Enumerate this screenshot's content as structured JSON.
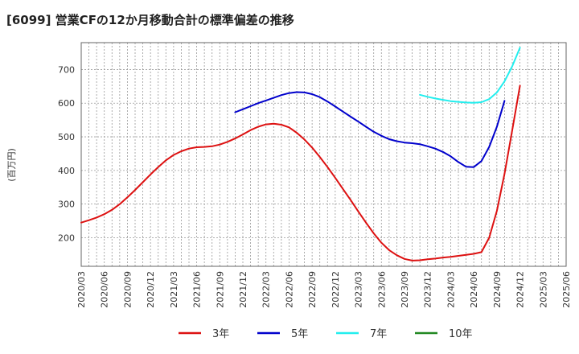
{
  "chart_data": {
    "type": "line",
    "title": "[6099]  営業CFの12か月移動合計の標準偏差の推移",
    "ylabel": "(百万円)",
    "xlabel": "",
    "ylim": [
      115,
      780
    ],
    "yticks": [
      200,
      300,
      400,
      500,
      600,
      700
    ],
    "grid": true,
    "legend_position": "bottom",
    "x_start": "2020-03",
    "x_end": "2025-06",
    "xtick_labels": [
      "2020/03",
      "2020/06",
      "2020/09",
      "2020/12",
      "2021/03",
      "2021/06",
      "2021/09",
      "2021/12",
      "2022/03",
      "2022/06",
      "2022/09",
      "2022/12",
      "2023/03",
      "2023/06",
      "2023/09",
      "2023/12",
      "2024/03",
      "2024/06",
      "2024/09",
      "2024/12",
      "2025/03",
      "2025/06"
    ],
    "series": [
      {
        "name": "3年",
        "color": "#dd1111",
        "points": [
          [
            "2020-03",
            245
          ],
          [
            "2020-04",
            252
          ],
          [
            "2020-05",
            260
          ],
          [
            "2020-06",
            270
          ],
          [
            "2020-07",
            283
          ],
          [
            "2020-08",
            300
          ],
          [
            "2020-09",
            320
          ],
          [
            "2020-10",
            342
          ],
          [
            "2020-11",
            365
          ],
          [
            "2020-12",
            388
          ],
          [
            "2021-01",
            410
          ],
          [
            "2021-02",
            430
          ],
          [
            "2021-03",
            446
          ],
          [
            "2021-04",
            457
          ],
          [
            "2021-05",
            465
          ],
          [
            "2021-06",
            469
          ],
          [
            "2021-07",
            470
          ],
          [
            "2021-08",
            472
          ],
          [
            "2021-09",
            477
          ],
          [
            "2021-10",
            485
          ],
          [
            "2021-11",
            495
          ],
          [
            "2021-12",
            507
          ],
          [
            "2022-01",
            520
          ],
          [
            "2022-02",
            530
          ],
          [
            "2022-03",
            537
          ],
          [
            "2022-04",
            539
          ],
          [
            "2022-05",
            536
          ],
          [
            "2022-06",
            528
          ],
          [
            "2022-07",
            512
          ],
          [
            "2022-08",
            492
          ],
          [
            "2022-09",
            468
          ],
          [
            "2022-10",
            440
          ],
          [
            "2022-11",
            410
          ],
          [
            "2022-12",
            378
          ],
          [
            "2023-01",
            345
          ],
          [
            "2023-02",
            312
          ],
          [
            "2023-03",
            278
          ],
          [
            "2023-04",
            245
          ],
          [
            "2023-05",
            213
          ],
          [
            "2023-06",
            185
          ],
          [
            "2023-07",
            163
          ],
          [
            "2023-08",
            148
          ],
          [
            "2023-09",
            137
          ],
          [
            "2023-10",
            132
          ],
          [
            "2023-11",
            133
          ],
          [
            "2023-12",
            136
          ],
          [
            "2024-01",
            138
          ],
          [
            "2024-02",
            141
          ],
          [
            "2024-03",
            143
          ],
          [
            "2024-04",
            146
          ],
          [
            "2024-05",
            149
          ],
          [
            "2024-06",
            152
          ],
          [
            "2024-07",
            157
          ],
          [
            "2024-08",
            200
          ],
          [
            "2024-09",
            280
          ],
          [
            "2024-10",
            390
          ],
          [
            "2024-11",
            520
          ],
          [
            "2024-12",
            652
          ]
        ]
      },
      {
        "name": "5年",
        "color": "#0000cc",
        "points": [
          [
            "2021-11",
            573
          ],
          [
            "2021-12",
            582
          ],
          [
            "2022-01",
            591
          ],
          [
            "2022-02",
            600
          ],
          [
            "2022-03",
            608
          ],
          [
            "2022-04",
            616
          ],
          [
            "2022-05",
            624
          ],
          [
            "2022-06",
            630
          ],
          [
            "2022-07",
            633
          ],
          [
            "2022-08",
            632
          ],
          [
            "2022-09",
            627
          ],
          [
            "2022-10",
            618
          ],
          [
            "2022-11",
            605
          ],
          [
            "2022-12",
            590
          ],
          [
            "2023-01",
            575
          ],
          [
            "2023-02",
            560
          ],
          [
            "2023-03",
            545
          ],
          [
            "2023-04",
            530
          ],
          [
            "2023-05",
            515
          ],
          [
            "2023-06",
            503
          ],
          [
            "2023-07",
            493
          ],
          [
            "2023-08",
            487
          ],
          [
            "2023-09",
            483
          ],
          [
            "2023-10",
            481
          ],
          [
            "2023-11",
            478
          ],
          [
            "2023-12",
            472
          ],
          [
            "2024-01",
            465
          ],
          [
            "2024-02",
            455
          ],
          [
            "2024-03",
            442
          ],
          [
            "2024-04",
            425
          ],
          [
            "2024-05",
            411
          ],
          [
            "2024-06",
            410
          ],
          [
            "2024-07",
            428
          ],
          [
            "2024-08",
            470
          ],
          [
            "2024-09",
            530
          ],
          [
            "2024-10",
            607
          ]
        ]
      },
      {
        "name": "7年",
        "color": "#22eeee",
        "points": [
          [
            "2023-11",
            625
          ],
          [
            "2023-12",
            619
          ],
          [
            "2024-01",
            614
          ],
          [
            "2024-02",
            610
          ],
          [
            "2024-03",
            606
          ],
          [
            "2024-04",
            604
          ],
          [
            "2024-05",
            602
          ],
          [
            "2024-06",
            601
          ],
          [
            "2024-07",
            603
          ],
          [
            "2024-08",
            612
          ],
          [
            "2024-09",
            632
          ],
          [
            "2024-10",
            665
          ],
          [
            "2024-11",
            710
          ],
          [
            "2024-12",
            765
          ]
        ]
      },
      {
        "name": "10年",
        "color": "#228822",
        "points": []
      }
    ]
  }
}
